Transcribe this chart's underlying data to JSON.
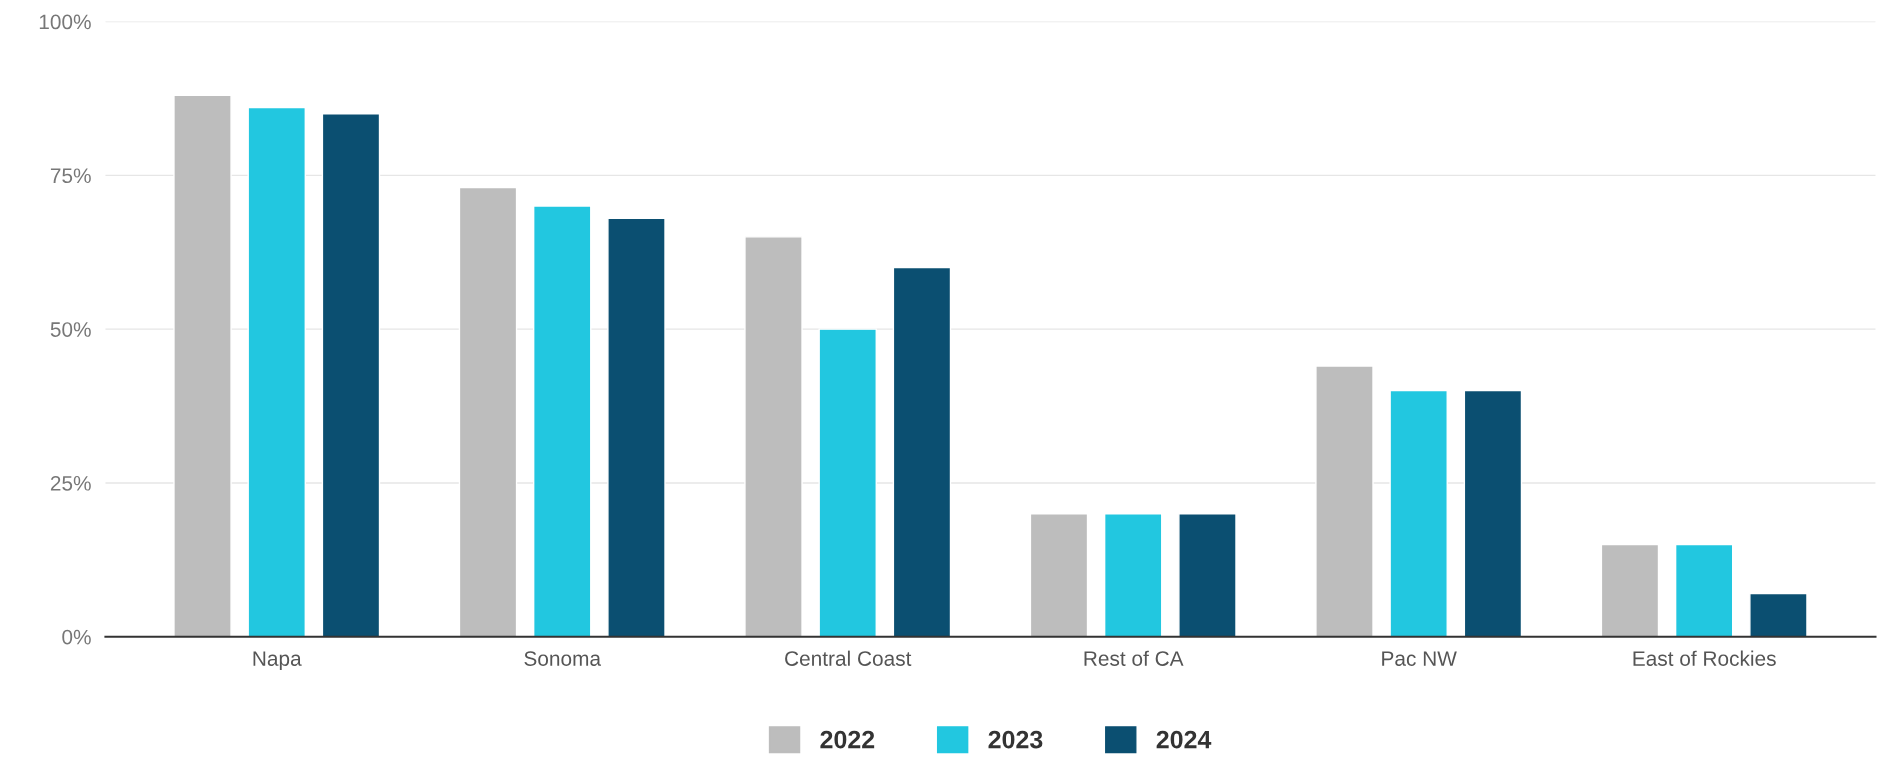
{
  "chart_data": {
    "type": "bar",
    "categories": [
      "Napa",
      "Sonoma",
      "Central Coast",
      "Rest of CA",
      "Pac NW",
      "East of Rockies"
    ],
    "series": [
      {
        "name": "2022",
        "color": "#bdbdbd",
        "values": [
          88,
          73,
          65,
          20,
          44,
          15
        ]
      },
      {
        "name": "2023",
        "color": "#22c7e0",
        "values": [
          86,
          70,
          50,
          20,
          40,
          15
        ]
      },
      {
        "name": "2024",
        "color": "#0b4f71",
        "values": [
          85,
          68,
          60,
          20,
          40,
          7
        ]
      }
    ],
    "ylim": [
      0,
      100
    ],
    "yticks": [
      {
        "value": 0,
        "label": "0%"
      },
      {
        "value": 25,
        "label": "25%"
      },
      {
        "value": 50,
        "label": "50%"
      },
      {
        "value": 75,
        "label": "75%"
      },
      {
        "value": 100,
        "label": "100%"
      }
    ],
    "grid": "y",
    "legend": "bottom"
  }
}
